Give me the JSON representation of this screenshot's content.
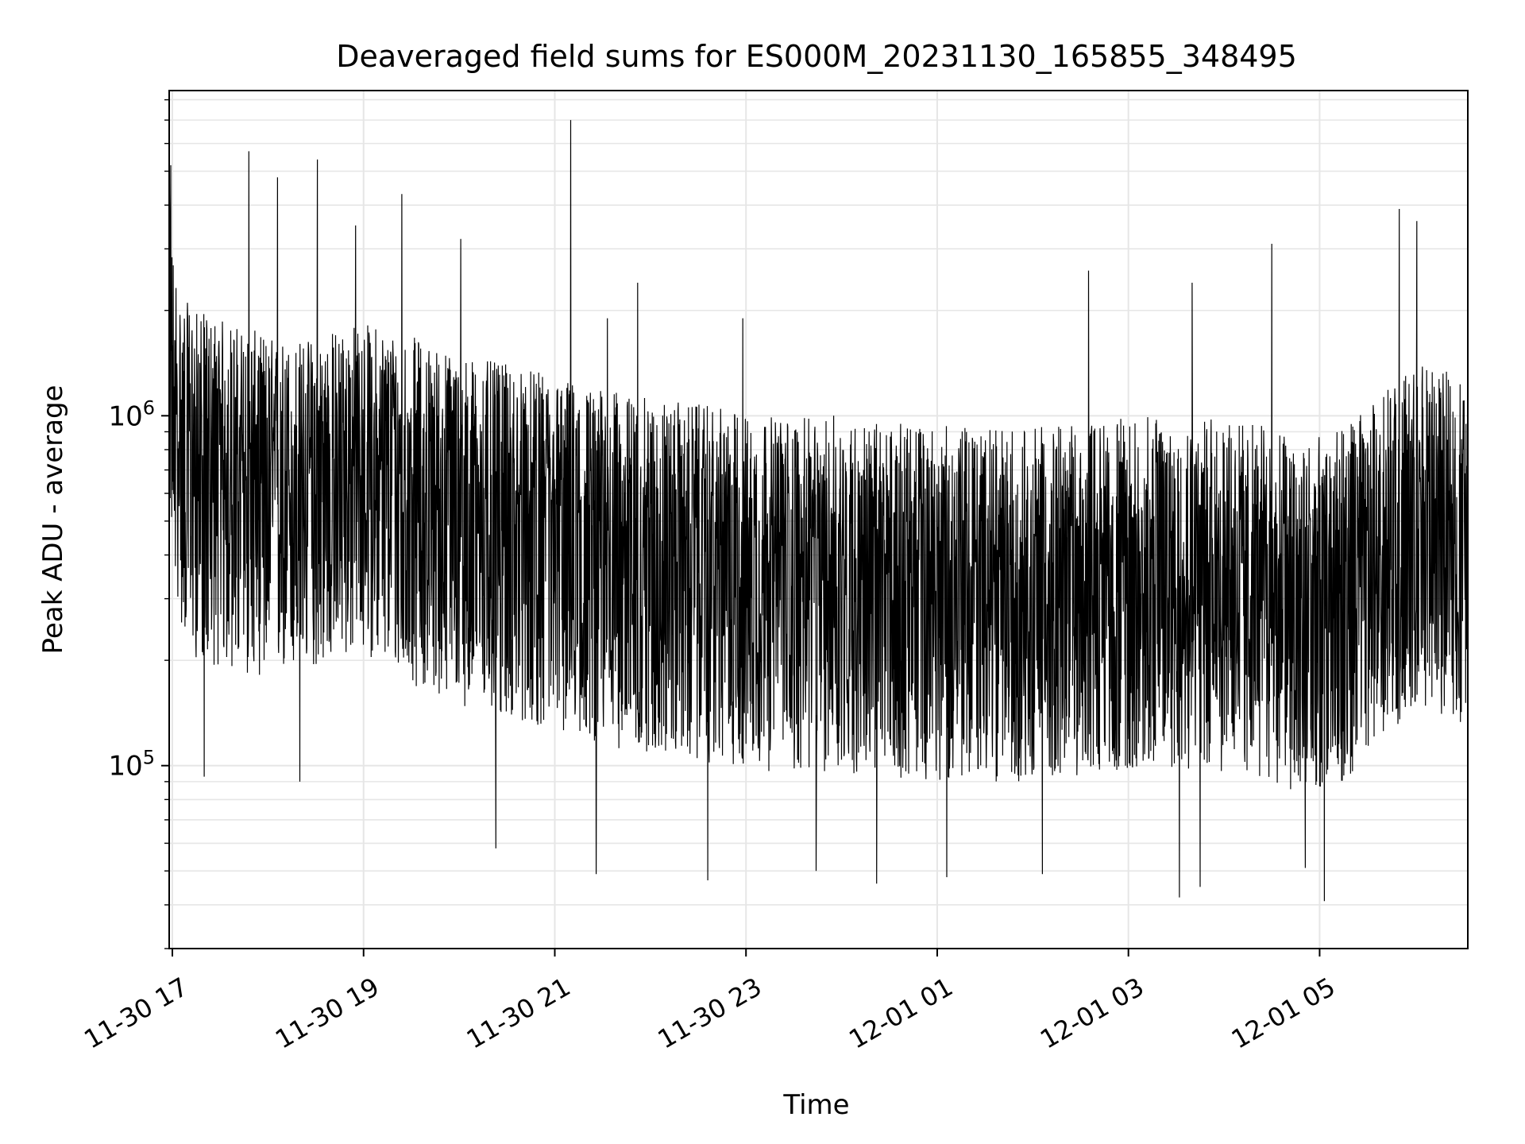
{
  "chart_data": {
    "type": "line",
    "title": "Deaveraged field sums for ES000M_20231130_165855_348495",
    "xlabel": "Time",
    "ylabel": "Peak ADU - average",
    "y_scale": "log",
    "ylim": [
      30000,
      8500000
    ],
    "xlim": [
      "2023-11-30 16:58",
      "2023-12-01 06:33"
    ],
    "x_ticks": [
      {
        "time": "2023-11-30 17:00",
        "label": "11-30 17"
      },
      {
        "time": "2023-11-30 19:00",
        "label": "11-30 19"
      },
      {
        "time": "2023-11-30 21:00",
        "label": "11-30 21"
      },
      {
        "time": "2023-11-30 23:00",
        "label": "11-30 23"
      },
      {
        "time": "2023-12-01 01:00",
        "label": "12-01 01"
      },
      {
        "time": "2023-12-01 03:00",
        "label": "12-01 03"
      },
      {
        "time": "2023-12-01 05:00",
        "label": "12-01 05"
      }
    ],
    "y_ticks": [
      {
        "value": 100000,
        "base": "10",
        "exp": "5"
      },
      {
        "value": 1000000,
        "base": "10",
        "exp": "6"
      }
    ],
    "grid": true,
    "line_color": "#000000",
    "grid_color": "#e6e6e6",
    "series": [
      {
        "x": [
          "2023-11-30 16:58",
          "2023-11-30 17:00",
          "2023-11-30 17:05",
          "2023-11-30 17:15",
          "2023-11-30 17:30",
          "2023-11-30 17:45",
          "2023-11-30 18:00",
          "2023-11-30 18:15",
          "2023-11-30 18:30",
          "2023-11-30 18:45",
          "2023-11-30 19:00",
          "2023-11-30 19:15",
          "2023-11-30 19:30",
          "2023-11-30 19:45",
          "2023-11-30 20:00",
          "2023-11-30 20:15",
          "2023-11-30 20:30",
          "2023-11-30 20:45",
          "2023-11-30 21:00",
          "2023-11-30 21:15",
          "2023-11-30 21:30",
          "2023-11-30 21:45",
          "2023-11-30 22:00",
          "2023-11-30 22:15",
          "2023-11-30 22:30",
          "2023-11-30 22:45",
          "2023-11-30 23:00",
          "2023-11-30 23:15",
          "2023-11-30 23:30",
          "2023-11-30 23:45",
          "2023-12-01 00:00",
          "2023-12-01 00:15",
          "2023-12-01 00:30",
          "2023-12-01 00:45",
          "2023-12-01 01:00",
          "2023-12-01 01:15",
          "2023-12-01 01:30",
          "2023-12-01 01:45",
          "2023-12-01 02:00",
          "2023-12-01 02:15",
          "2023-12-01 02:30",
          "2023-12-01 02:45",
          "2023-12-01 03:00",
          "2023-12-01 03:15",
          "2023-12-01 03:30",
          "2023-12-01 03:45",
          "2023-12-01 04:00",
          "2023-12-01 04:15",
          "2023-12-01 04:30",
          "2023-12-01 04:45",
          "2023-12-01 05:00",
          "2023-12-01 05:15",
          "2023-12-01 05:30",
          "2023-12-01 05:45",
          "2023-12-01 06:00",
          "2023-12-01 06:15",
          "2023-12-01 06:33"
        ],
        "y": [
          1500000,
          1000000,
          800000,
          750000,
          700000,
          650000,
          620000,
          600000,
          650000,
          700000,
          720000,
          700000,
          650000,
          600000,
          580000,
          560000,
          540000,
          520000,
          500000,
          480000,
          470000,
          450000,
          440000,
          430000,
          420000,
          410000,
          400000,
          390000,
          390000,
          380000,
          380000,
          370000,
          360000,
          360000,
          350000,
          350000,
          340000,
          340000,
          340000,
          350000,
          350000,
          360000,
          370000,
          380000,
          380000,
          370000,
          360000,
          350000,
          330000,
          320000,
          310000,
          330000,
          380000,
          450000,
          500000,
          480000,
          450000
        ],
        "y_low": [
          600000,
          400000,
          250000,
          200000,
          190000,
          180000,
          180000,
          180000,
          190000,
          200000,
          210000,
          190000,
          170000,
          160000,
          150000,
          140000,
          135000,
          130000,
          125000,
          120000,
          115000,
          110000,
          108000,
          105000,
          102000,
          100000,
          98000,
          96000,
          95000,
          94000,
          94000,
          93000,
          92000,
          92000,
          91000,
          91000,
          90000,
          90000,
          90000,
          92000,
          93000,
          95000,
          97000,
          98000,
          98000,
          96000,
          94000,
          92000,
          88000,
          85000,
          84000,
          88000,
          100000,
          125000,
          150000,
          140000,
          130000
        ],
        "y_high": [
          4500000,
          3200000,
          2200000,
          2000000,
          1900000,
          1800000,
          1700000,
          1650000,
          1700000,
          1800000,
          1850000,
          1800000,
          1700000,
          1600000,
          1500000,
          1450000,
          1400000,
          1350000,
          1300000,
          1250000,
          1200000,
          1150000,
          1120000,
          1100000,
          1080000,
          1050000,
          1020000,
          1000000,
          990000,
          980000,
          970000,
          960000,
          950000,
          950000,
          940000,
          930000,
          920000,
          920000,
          930000,
          940000,
          950000,
          970000,
          990000,
          1000000,
          1000000,
          990000,
          980000,
          960000,
          930000,
          900000,
          880000,
          920000,
          1050000,
          1250000,
          1400000,
          1350000,
          1300000
        ],
        "spikes": [
          {
            "time": "2023-11-30 16:59",
            "value": 5200000
          },
          {
            "time": "2023-11-30 17:48",
            "value": 5700000
          },
          {
            "time": "2023-11-30 18:06",
            "value": 4800000
          },
          {
            "time": "2023-11-30 18:31",
            "value": 5400000
          },
          {
            "time": "2023-11-30 18:55",
            "value": 3500000
          },
          {
            "time": "2023-11-30 19:24",
            "value": 4300000
          },
          {
            "time": "2023-11-30 20:01",
            "value": 3200000
          },
          {
            "time": "2023-11-30 21:10",
            "value": 7000000
          },
          {
            "time": "2023-11-30 21:33",
            "value": 1900000
          },
          {
            "time": "2023-11-30 21:52",
            "value": 2400000
          },
          {
            "time": "2023-11-30 22:58",
            "value": 1900000
          },
          {
            "time": "2023-11-30 23:55",
            "value": 1000000
          },
          {
            "time": "2023-12-01 02:35",
            "value": 2600000
          },
          {
            "time": "2023-12-01 03:40",
            "value": 2400000
          },
          {
            "time": "2023-12-01 04:30",
            "value": 3100000
          },
          {
            "time": "2023-12-01 05:50",
            "value": 3900000
          },
          {
            "time": "2023-12-01 06:01",
            "value": 3600000
          }
        ],
        "dips": [
          {
            "time": "2023-11-30 17:20",
            "value": 93000
          },
          {
            "time": "2023-11-30 18:20",
            "value": 90000
          },
          {
            "time": "2023-11-30 20:23",
            "value": 58000
          },
          {
            "time": "2023-11-30 21:26",
            "value": 49000
          },
          {
            "time": "2023-11-30 22:36",
            "value": 47000
          },
          {
            "time": "2023-11-30 23:44",
            "value": 50000
          },
          {
            "time": "2023-12-01 00:22",
            "value": 46000
          },
          {
            "time": "2023-12-01 01:06",
            "value": 48000
          },
          {
            "time": "2023-12-01 02:06",
            "value": 49000
          },
          {
            "time": "2023-12-01 03:32",
            "value": 42000
          },
          {
            "time": "2023-12-01 03:45",
            "value": 45000
          },
          {
            "time": "2023-12-01 04:51",
            "value": 51000
          },
          {
            "time": "2023-12-01 05:03",
            "value": 41000
          }
        ]
      }
    ]
  }
}
